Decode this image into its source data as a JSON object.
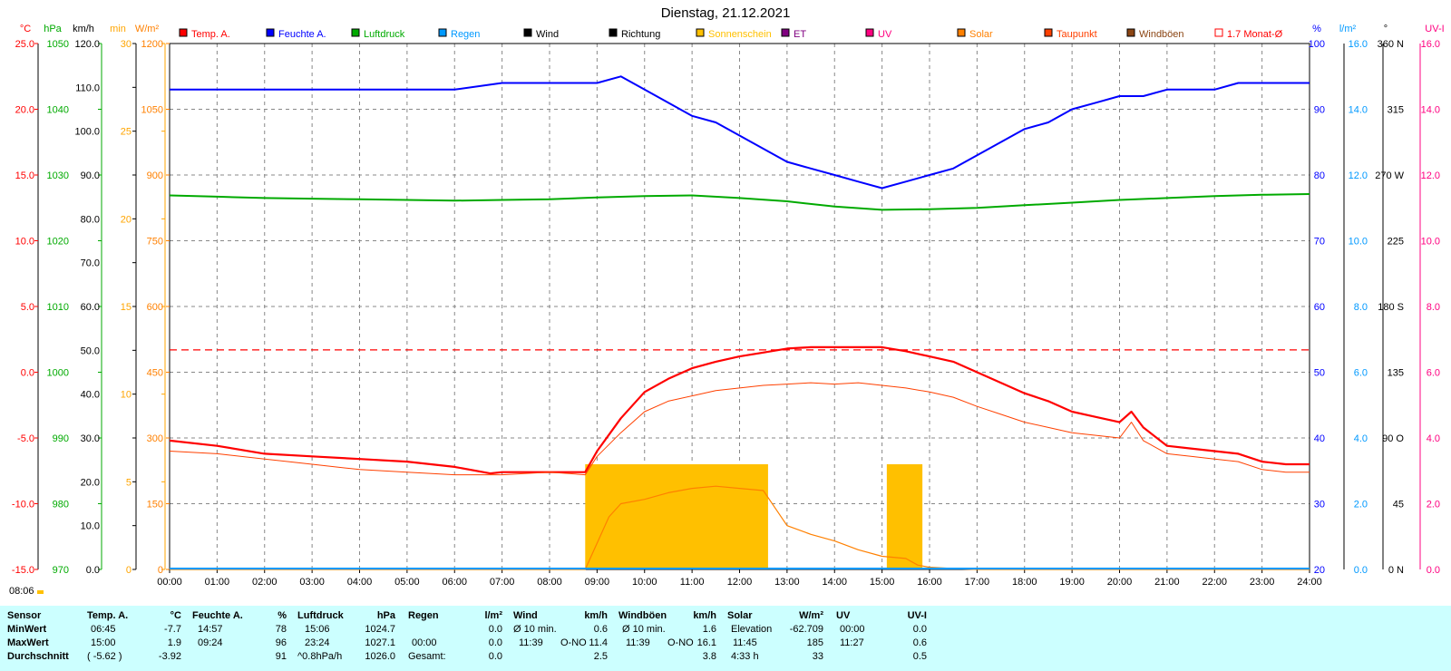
{
  "title": "Dienstag, 21.12.2021",
  "colors": {
    "temp": "#ff0000",
    "humidity": "#0000ff",
    "pressure": "#00aa00",
    "rain": "#0099ff",
    "wind": "#000000",
    "direction": "#000000",
    "sunshine": "#ffc000",
    "et": "#800080",
    "uv": "#ff0080",
    "solar": "#ff8000",
    "dewpoint": "#ff4000",
    "gusts": "#8b4513",
    "monthavg": "#ff0000",
    "summary_bg": "#ccffff"
  },
  "legend": [
    {
      "label": "Temp. A.",
      "color": "#ff0000"
    },
    {
      "label": "Feuchte A.",
      "color": "#0000ff"
    },
    {
      "label": "Luftdruck",
      "color": "#00aa00"
    },
    {
      "label": "Regen",
      "color": "#0099ff"
    },
    {
      "label": "Wind",
      "color": "#000000"
    },
    {
      "label": "Richtung",
      "color": "#000000"
    },
    {
      "label": "Sonnenschein",
      "color": "#ffc000"
    },
    {
      "label": "ET",
      "color": "#800080"
    },
    {
      "label": "UV",
      "color": "#ff0080"
    },
    {
      "label": "Solar",
      "color": "#ff8000"
    },
    {
      "label": "Taupunkt",
      "color": "#ff4000"
    },
    {
      "label": "Windböen",
      "color": "#8b4513"
    },
    {
      "label": "1.7 Monat-Ø",
      "color": "#ff0000"
    }
  ],
  "axes_left": [
    {
      "unit": "°C",
      "color": "#ff0000",
      "ticks": [
        "25.0",
        "20.0",
        "15.0",
        "10.0",
        "5.0",
        "0.0",
        "-5.0",
        "-10.0",
        "-15.0"
      ]
    },
    {
      "unit": "hPa",
      "color": "#00aa00",
      "ticks": [
        "1050",
        "1040",
        "1030",
        "1020",
        "1010",
        "1000",
        "990",
        "980",
        "970"
      ]
    },
    {
      "unit": "km/h",
      "color": "#000000",
      "ticks": [
        "120.0",
        "110.0",
        "100.0",
        "90.0",
        "80.0",
        "70.0",
        "60.0",
        "50.0",
        "40.0",
        "30.0",
        "20.0",
        "10.0",
        "0.0"
      ]
    },
    {
      "unit": "min",
      "color": "#ffa500",
      "ticks": [
        "30",
        "25",
        "20",
        "15",
        "10",
        "5",
        "0"
      ]
    },
    {
      "unit": "W/m²",
      "color": "#ff8000",
      "ticks": [
        "1200",
        "1050",
        "900",
        "750",
        "600",
        "450",
        "300",
        "150",
        "0"
      ]
    }
  ],
  "axes_right": [
    {
      "unit": "%",
      "color": "#0000ff",
      "ticks": [
        "100",
        "90",
        "80",
        "70",
        "60",
        "50",
        "40",
        "30",
        "20"
      ]
    },
    {
      "unit": "l/m²",
      "color": "#0099ff",
      "ticks": [
        "16.0",
        "14.0",
        "12.0",
        "10.0",
        "8.0",
        "6.0",
        "4.0",
        "2.0",
        "0.0"
      ]
    },
    {
      "unit": "°",
      "color": "#000000",
      "ticks": [
        "360 N",
        "315",
        "270 W",
        "225",
        "180 S",
        "135",
        "90 O",
        "45",
        "0 N"
      ]
    },
    {
      "unit": "UV-I",
      "color": "#ff0080",
      "ticks": [
        "16.0",
        "14.0",
        "12.0",
        "10.0",
        "8.0",
        "6.0",
        "4.0",
        "2.0",
        "0.0"
      ]
    }
  ],
  "x_labels": [
    "00:00",
    "01:00",
    "02:00",
    "03:00",
    "04:00",
    "05:00",
    "06:00",
    "07:00",
    "08:00",
    "09:00",
    "10:00",
    "11:00",
    "12:00",
    "13:00",
    "14:00",
    "15:00",
    "16:00",
    "17:00",
    "18:00",
    "19:00",
    "20:00",
    "21:00",
    "22:00",
    "23:00",
    "24:00"
  ],
  "sunrise_time": "08:06",
  "chart_data": {
    "type": "line",
    "title": "Dienstag, 21.12.2021",
    "x_unit": "hours",
    "xlim": [
      0,
      24
    ],
    "month_avg_temp": 1.7,
    "series": [
      {
        "name": "Temp. A.",
        "axis": "°C",
        "ylim": [
          -15,
          25
        ],
        "x": [
          0,
          1,
          2,
          3,
          4,
          5,
          6,
          6.75,
          7,
          8,
          8.75,
          9,
          9.5,
          10,
          10.5,
          11,
          11.5,
          12,
          12.5,
          13,
          13.5,
          14,
          14.5,
          15,
          15.5,
          16,
          16.5,
          17,
          17.5,
          18,
          18.5,
          19,
          19.5,
          20,
          20.25,
          20.5,
          21,
          21.5,
          22,
          22.5,
          23,
          23.5,
          24
        ],
        "y": [
          -5.2,
          -5.6,
          -6.2,
          -6.4,
          -6.6,
          -6.8,
          -7.2,
          -7.7,
          -7.6,
          -7.6,
          -7.6,
          -6.0,
          -3.5,
          -1.5,
          -0.5,
          0.3,
          0.8,
          1.2,
          1.5,
          1.8,
          1.9,
          1.9,
          1.9,
          1.9,
          1.6,
          1.2,
          0.8,
          0.0,
          -0.8,
          -1.6,
          -2.2,
          -3.0,
          -3.4,
          -3.8,
          -3.0,
          -4.2,
          -5.6,
          -5.8,
          -6.0,
          -6.2,
          -6.8,
          -7.0,
          -7.0
        ]
      },
      {
        "name": "Taupunkt",
        "axis": "°C",
        "ylim": [
          -15,
          25
        ],
        "x": [
          0,
          1,
          2,
          3,
          4,
          5,
          6,
          7,
          8,
          8.75,
          9,
          9.5,
          10,
          10.5,
          11,
          11.5,
          12,
          12.5,
          13,
          13.5,
          14,
          14.5,
          15,
          15.5,
          16,
          16.5,
          17,
          17.5,
          18,
          18.5,
          19,
          19.5,
          20,
          20.25,
          20.5,
          21,
          21.5,
          22,
          22.5,
          23,
          23.5,
          24
        ],
        "y": [
          -6.0,
          -6.2,
          -6.6,
          -7.0,
          -7.4,
          -7.6,
          -7.8,
          -7.8,
          -7.6,
          -7.8,
          -6.4,
          -4.6,
          -3.0,
          -2.2,
          -1.8,
          -1.4,
          -1.2,
          -1.0,
          -0.9,
          -0.8,
          -0.9,
          -0.8,
          -1.0,
          -1.2,
          -1.5,
          -1.9,
          -2.6,
          -3.2,
          -3.8,
          -4.2,
          -4.6,
          -4.8,
          -5.0,
          -3.8,
          -5.2,
          -6.2,
          -6.4,
          -6.6,
          -6.8,
          -7.4,
          -7.6,
          -7.6
        ]
      },
      {
        "name": "Feuchte A.",
        "axis": "%",
        "ylim": [
          20,
          100
        ],
        "x": [
          0,
          1,
          2,
          3,
          4,
          5,
          6,
          7,
          8,
          9,
          9.5,
          10,
          10.5,
          11,
          11.5,
          12,
          12.5,
          13,
          13.5,
          14,
          14.5,
          15,
          15.5,
          16,
          16.5,
          17,
          17.5,
          18,
          18.5,
          19,
          19.5,
          20,
          20.5,
          21,
          21.5,
          22,
          22.5,
          23,
          23.5,
          24
        ],
        "y": [
          93,
          93,
          93,
          93,
          93,
          93,
          93,
          94,
          94,
          94,
          95,
          93,
          91,
          89,
          88,
          86,
          84,
          82,
          81,
          80,
          79,
          78,
          79,
          80,
          81,
          83,
          85,
          87,
          88,
          90,
          91,
          92,
          92,
          93,
          93,
          93,
          94,
          94,
          94,
          94
        ]
      },
      {
        "name": "Luftdruck",
        "axis": "hPa",
        "ylim": [
          970,
          1050
        ],
        "x": [
          0,
          1,
          2,
          3,
          4,
          5,
          6,
          7,
          8,
          9,
          10,
          11,
          12,
          13,
          14,
          15,
          16,
          17,
          18,
          19,
          20,
          21,
          22,
          23,
          24
        ],
        "y": [
          1026.9,
          1026.7,
          1026.5,
          1026.4,
          1026.3,
          1026.2,
          1026.1,
          1026.2,
          1026.3,
          1026.6,
          1026.8,
          1026.9,
          1026.5,
          1026.0,
          1025.2,
          1024.7,
          1024.8,
          1025.0,
          1025.4,
          1025.8,
          1026.2,
          1026.5,
          1026.8,
          1027.0,
          1027.1
        ]
      },
      {
        "name": "Solar",
        "axis": "W/m²",
        "ylim": [
          0,
          1200
        ],
        "x": [
          0,
          8.75,
          9,
          9.25,
          9.5,
          10,
          10.5,
          11,
          11.5,
          12,
          12.5,
          12.75,
          13,
          13.5,
          14,
          14.5,
          15,
          15.5,
          15.75,
          16,
          16.5,
          17,
          17.5,
          24
        ],
        "y": [
          0,
          0,
          60,
          120,
          150,
          160,
          175,
          185,
          190,
          185,
          180,
          140,
          100,
          80,
          65,
          45,
          30,
          25,
          10,
          5,
          2,
          0,
          0,
          0
        ]
      }
    ],
    "sunshine_blocks": [
      {
        "from": 8.75,
        "to": 12.6,
        "minutes": 6
      },
      {
        "from": 15.1,
        "to": 15.85,
        "minutes": 6
      }
    ]
  },
  "summary": {
    "sensor": {
      "header": "Sensor",
      "rows": [
        "MinWert",
        "MaxWert",
        "Durchschnitt"
      ]
    },
    "temp": {
      "header": "Temp. A.",
      "unit": "°C",
      "time_min": "06:45",
      "min": "-7.7",
      "time_max": "15:00",
      "max": "1.9",
      "extra_avg": "( -5.62 )",
      "avg": "-3.92"
    },
    "humidity": {
      "header": "Feuchte A.",
      "unit": "%",
      "time_min": "14:57",
      "min": "78",
      "time_max": "09:24",
      "max": "96",
      "avg": "91"
    },
    "pressure": {
      "header": "Luftdruck",
      "unit": "hPa",
      "time_min": "15:06",
      "min": "1024.7",
      "time_max": "23:24",
      "max": "1027.1",
      "trend": "^0.8hPa/h",
      "avg": "1026.0"
    },
    "rain": {
      "header": "Regen",
      "unit": "l/m²",
      "min": "0.0",
      "time_max": "00:00",
      "max": "0.0",
      "total_label": "Gesamt:",
      "total": "0.0"
    },
    "wind": {
      "header": "Wind",
      "unit": "km/h",
      "min_label": "Ø 10 min.",
      "min": "0.6",
      "time_max": "11:39",
      "dir_max": "O-NO",
      "max": "11.4",
      "avg": "2.5"
    },
    "gusts": {
      "header": "Windböen",
      "unit": "km/h",
      "min_label": "Ø 10 min.",
      "min": "1.6",
      "time_max": "11:39",
      "dir_max": "O-NO",
      "max": "16.1",
      "avg": "3.8"
    },
    "solar": {
      "header": "Solar",
      "unit": "W/m²",
      "min_label": "Elevation",
      "min": "-62.709",
      "time_max": "11:45",
      "max": "185",
      "duration": "4:33 h",
      "avg": "33"
    },
    "uv": {
      "header": "UV",
      "unit": "UV-I",
      "time_min": "00:00",
      "min": "0.0",
      "time_max": "11:27",
      "max": "0.6",
      "avg": "0.5"
    }
  }
}
